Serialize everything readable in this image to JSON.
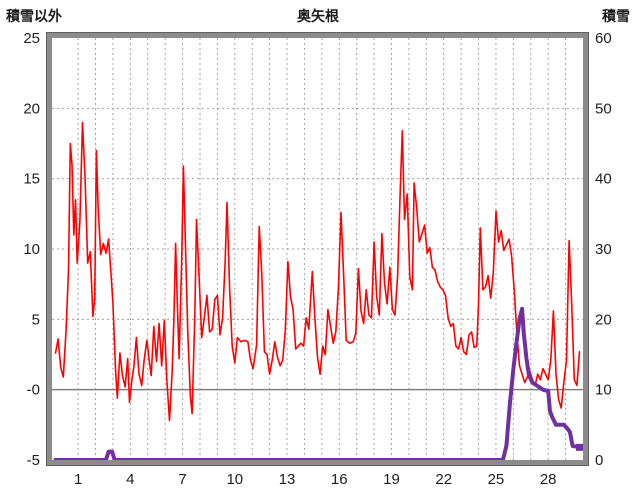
{
  "chart": {
    "title": "奥矢根",
    "left_axis_title": "積雪以外",
    "right_axis_title": "積雪"
  },
  "chart_data": {
    "type": "line",
    "title": "奥矢根",
    "left_axis_title": "積雪以外",
    "right_axis_title": "積雪",
    "xlim": [
      -0.5,
      30
    ],
    "left_axis": {
      "lim": [
        -5,
        25
      ],
      "ticks": [
        {
          "v": 25,
          "t": "25"
        },
        {
          "v": 20,
          "t": "20"
        },
        {
          "v": 15,
          "t": "15"
        },
        {
          "v": 10,
          "t": "10"
        },
        {
          "v": 5,
          "t": "5"
        },
        {
          "v": 0,
          "t": "-0"
        },
        {
          "v": -5,
          "t": "-5"
        }
      ]
    },
    "right_axis": {
      "lim": [
        0,
        60
      ],
      "ticks": [
        {
          "v": 60,
          "t": "60"
        },
        {
          "v": 50,
          "t": "50"
        },
        {
          "v": 40,
          "t": "40"
        },
        {
          "v": 30,
          "t": "30"
        },
        {
          "v": 20,
          "t": "20"
        },
        {
          "v": 10,
          "t": "10"
        },
        {
          "v": 0,
          "t": "0"
        }
      ]
    },
    "xticks": [
      1,
      4,
      7,
      10,
      13,
      16,
      19,
      22,
      25,
      28
    ],
    "grid": {
      "vertical_every_day": true,
      "dashed_horizontal_at": [
        5,
        10,
        15,
        20
      ],
      "zero_line": true
    },
    "legend": "none",
    "colors": {
      "red": "#ff0000",
      "purple": "#7030a0",
      "grid": "#a3a3a3",
      "zero_line": "#808080",
      "frame": "#8c8c8c",
      "frame_dark": "#5f5f5f",
      "text": "#1f1f1f",
      "background": "#ffffff"
    },
    "series": [
      {
        "name": "積雪以外",
        "axis": "left",
        "color": "#ff0000",
        "width": 1.6,
        "points": [
          [
            -0.3,
            2.6
          ],
          [
            -0.15,
            3.6
          ],
          [
            0.0,
            1.6
          ],
          [
            0.15,
            0.9
          ],
          [
            0.3,
            4.0
          ],
          [
            0.45,
            8.5
          ],
          [
            0.55,
            17.5
          ],
          [
            0.65,
            16.0
          ],
          [
            0.75,
            11.0
          ],
          [
            0.85,
            13.5
          ],
          [
            0.95,
            9.0
          ],
          [
            1.1,
            12.0
          ],
          [
            1.25,
            19.0
          ],
          [
            1.4,
            15.0
          ],
          [
            1.55,
            9.0
          ],
          [
            1.7,
            9.8
          ],
          [
            1.85,
            5.2
          ],
          [
            1.95,
            6.5
          ],
          [
            2.05,
            17.0
          ],
          [
            2.15,
            13.0
          ],
          [
            2.3,
            9.6
          ],
          [
            2.45,
            10.4
          ],
          [
            2.6,
            9.7
          ],
          [
            2.75,
            10.7
          ],
          [
            2.9,
            8.0
          ],
          [
            3.0,
            6.2
          ],
          [
            3.15,
            1.5
          ],
          [
            3.25,
            -0.6
          ],
          [
            3.4,
            2.6
          ],
          [
            3.55,
            1.0
          ],
          [
            3.7,
            0.2
          ],
          [
            3.85,
            2.2
          ],
          [
            3.95,
            -0.9
          ],
          [
            4.1,
            0.8
          ],
          [
            4.2,
            1.6
          ],
          [
            4.35,
            3.7
          ],
          [
            4.5,
            1.1
          ],
          [
            4.65,
            0.3
          ],
          [
            4.8,
            2.2
          ],
          [
            4.95,
            3.5
          ],
          [
            5.1,
            1.9
          ],
          [
            5.2,
            1.0
          ],
          [
            5.35,
            4.5
          ],
          [
            5.5,
            2.0
          ],
          [
            5.65,
            4.7
          ],
          [
            5.8,
            1.7
          ],
          [
            5.95,
            4.9
          ],
          [
            6.1,
            0.6
          ],
          [
            6.25,
            -2.2
          ],
          [
            6.4,
            1.2
          ],
          [
            6.5,
            5.0
          ],
          [
            6.6,
            10.4
          ],
          [
            6.7,
            6.0
          ],
          [
            6.8,
            2.2
          ],
          [
            6.95,
            9.2
          ],
          [
            7.05,
            15.9
          ],
          [
            7.15,
            11.0
          ],
          [
            7.3,
            4.0
          ],
          [
            7.45,
            -0.5
          ],
          [
            7.55,
            -1.7
          ],
          [
            7.7,
            5.2
          ],
          [
            7.8,
            12.1
          ],
          [
            7.95,
            8.0
          ],
          [
            8.1,
            3.7
          ],
          [
            8.25,
            5.1
          ],
          [
            8.4,
            6.7
          ],
          [
            8.55,
            4.1
          ],
          [
            8.7,
            4.3
          ],
          [
            8.85,
            6.4
          ],
          [
            9.0,
            6.7
          ],
          [
            9.15,
            3.9
          ],
          [
            9.3,
            5.1
          ],
          [
            9.45,
            9.2
          ],
          [
            9.55,
            13.3
          ],
          [
            9.7,
            7.2
          ],
          [
            9.85,
            3.1
          ],
          [
            10.0,
            1.9
          ],
          [
            10.15,
            3.7
          ],
          [
            10.35,
            3.4
          ],
          [
            10.55,
            3.5
          ],
          [
            10.75,
            3.4
          ],
          [
            10.9,
            2.1
          ],
          [
            11.05,
            1.5
          ],
          [
            11.25,
            3.2
          ],
          [
            11.4,
            11.6
          ],
          [
            11.55,
            8.2
          ],
          [
            11.7,
            2.7
          ],
          [
            11.85,
            2.5
          ],
          [
            12.0,
            1.1
          ],
          [
            12.15,
            2.1
          ],
          [
            12.3,
            3.4
          ],
          [
            12.45,
            2.3
          ],
          [
            12.6,
            1.7
          ],
          [
            12.75,
            2.1
          ],
          [
            12.9,
            4.2
          ],
          [
            13.05,
            9.1
          ],
          [
            13.2,
            6.6
          ],
          [
            13.35,
            5.7
          ],
          [
            13.5,
            2.9
          ],
          [
            13.65,
            3.1
          ],
          [
            13.8,
            3.3
          ],
          [
            13.95,
            3.1
          ],
          [
            14.1,
            5.1
          ],
          [
            14.25,
            4.3
          ],
          [
            14.45,
            8.4
          ],
          [
            14.6,
            5.1
          ],
          [
            14.75,
            2.3
          ],
          [
            14.9,
            1.1
          ],
          [
            15.05,
            3.1
          ],
          [
            15.2,
            2.5
          ],
          [
            15.35,
            5.7
          ],
          [
            15.5,
            4.5
          ],
          [
            15.65,
            3.3
          ],
          [
            15.8,
            4.1
          ],
          [
            15.95,
            7.2
          ],
          [
            16.1,
            12.6
          ],
          [
            16.25,
            8.2
          ],
          [
            16.4,
            3.5
          ],
          [
            16.6,
            3.3
          ],
          [
            16.8,
            3.4
          ],
          [
            16.95,
            4.0
          ],
          [
            17.1,
            8.6
          ],
          [
            17.25,
            5.6
          ],
          [
            17.4,
            4.7
          ],
          [
            17.55,
            7.1
          ],
          [
            17.7,
            5.3
          ],
          [
            17.85,
            5.1
          ],
          [
            18.0,
            10.5
          ],
          [
            18.15,
            6.6
          ],
          [
            18.3,
            5.3
          ],
          [
            18.45,
            11.1
          ],
          [
            18.6,
            7.6
          ],
          [
            18.75,
            6.1
          ],
          [
            18.9,
            8.7
          ],
          [
            19.05,
            5.7
          ],
          [
            19.2,
            5.3
          ],
          [
            19.35,
            8.1
          ],
          [
            19.5,
            14.1
          ],
          [
            19.62,
            18.4
          ],
          [
            19.75,
            12.1
          ],
          [
            19.9,
            13.9
          ],
          [
            20.05,
            8.0
          ],
          [
            20.2,
            7.1
          ],
          [
            20.3,
            14.7
          ],
          [
            20.45,
            12.9
          ],
          [
            20.6,
            10.5
          ],
          [
            20.75,
            11.1
          ],
          [
            20.9,
            11.7
          ],
          [
            21.05,
            9.7
          ],
          [
            21.2,
            10.1
          ],
          [
            21.35,
            8.7
          ],
          [
            21.5,
            8.5
          ],
          [
            21.65,
            7.7
          ],
          [
            21.8,
            7.3
          ],
          [
            21.95,
            7.1
          ],
          [
            22.1,
            6.7
          ],
          [
            22.25,
            5.1
          ],
          [
            22.4,
            4.5
          ],
          [
            22.55,
            4.7
          ],
          [
            22.7,
            3.1
          ],
          [
            22.85,
            2.9
          ],
          [
            23.0,
            3.7
          ],
          [
            23.15,
            2.7
          ],
          [
            23.3,
            2.5
          ],
          [
            23.45,
            3.9
          ],
          [
            23.6,
            4.1
          ],
          [
            23.75,
            3.0
          ],
          [
            23.9,
            3.1
          ],
          [
            24.0,
            6.1
          ],
          [
            24.1,
            11.5
          ],
          [
            24.25,
            7.1
          ],
          [
            24.4,
            7.3
          ],
          [
            24.55,
            8.1
          ],
          [
            24.7,
            6.5
          ],
          [
            24.85,
            8.3
          ],
          [
            25.0,
            12.7
          ],
          [
            25.15,
            10.5
          ],
          [
            25.3,
            11.3
          ],
          [
            25.45,
            9.9
          ],
          [
            25.6,
            10.3
          ],
          [
            25.75,
            10.7
          ],
          [
            25.9,
            9.5
          ],
          [
            26.05,
            7.1
          ],
          [
            26.2,
            4.1
          ],
          [
            26.35,
            1.7
          ],
          [
            26.5,
            1.1
          ],
          [
            26.65,
            0.5
          ],
          [
            26.8,
            0.9
          ],
          [
            26.95,
            1.3
          ],
          [
            27.1,
            0.7
          ],
          [
            27.25,
            0.3
          ],
          [
            27.4,
            1.1
          ],
          [
            27.55,
            0.7
          ],
          [
            27.7,
            1.5
          ],
          [
            27.85,
            1.1
          ],
          [
            28.0,
            0.7
          ],
          [
            28.15,
            2.1
          ],
          [
            28.3,
            5.6
          ],
          [
            28.45,
            1.1
          ],
          [
            28.6,
            -0.7
          ],
          [
            28.75,
            -1.3
          ],
          [
            28.9,
            0.5
          ],
          [
            29.05,
            2.1
          ],
          [
            29.2,
            10.6
          ],
          [
            29.35,
            6.1
          ],
          [
            29.5,
            0.7
          ],
          [
            29.65,
            0.3
          ],
          [
            29.8,
            2.7
          ]
        ]
      },
      {
        "name": "積雪",
        "axis": "right",
        "color": "#7030a0",
        "width": 4,
        "end_marker": true,
        "points": [
          [
            -0.3,
            0
          ],
          [
            2.6,
            0
          ],
          [
            2.75,
            1.2
          ],
          [
            2.95,
            1.2
          ],
          [
            3.1,
            0
          ],
          [
            25.4,
            0
          ],
          [
            25.6,
            2
          ],
          [
            25.8,
            8
          ],
          [
            26.0,
            13
          ],
          [
            26.2,
            17
          ],
          [
            26.35,
            20
          ],
          [
            26.5,
            21.5
          ],
          [
            26.6,
            18
          ],
          [
            26.75,
            14.5
          ],
          [
            26.9,
            12
          ],
          [
            27.1,
            11
          ],
          [
            27.4,
            10.5
          ],
          [
            27.7,
            10
          ],
          [
            28.0,
            9.8
          ],
          [
            28.1,
            7
          ],
          [
            28.25,
            6
          ],
          [
            28.45,
            5
          ],
          [
            28.9,
            5
          ],
          [
            29.1,
            4.5
          ],
          [
            29.25,
            4
          ],
          [
            29.4,
            2
          ],
          [
            29.8,
            1.8
          ]
        ]
      }
    ]
  }
}
